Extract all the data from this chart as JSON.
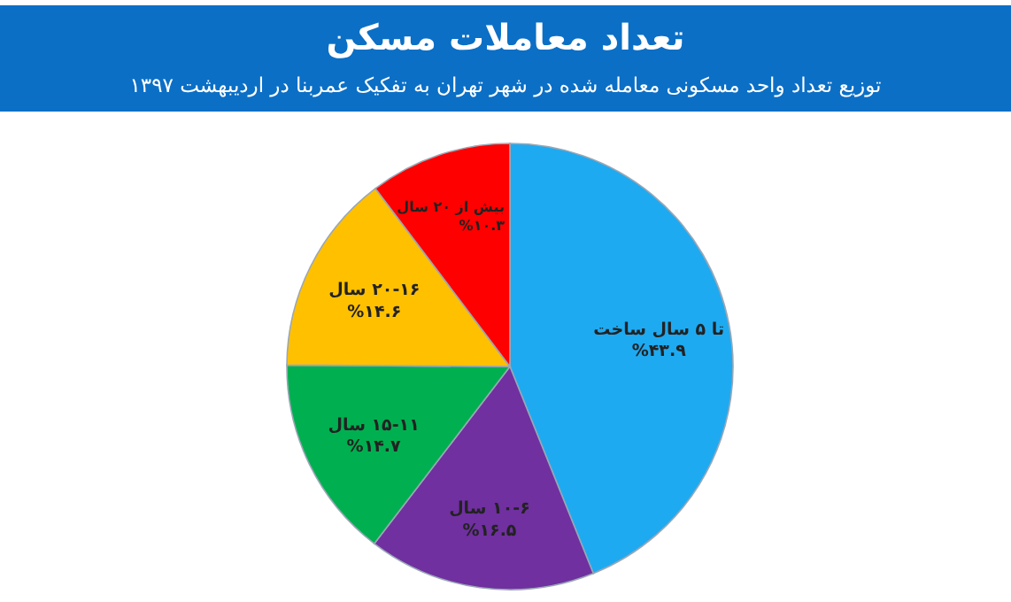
{
  "chart_data": {
    "type": "pie",
    "title": "تعداد معاملات مسکن",
    "subtitle": "توزیع تعداد واحد مسکونی معامله شده در شهر تهران به تفکیک عمربنا در اردیبهشت ۱۳۹۷",
    "categories": [
      "تا ۵ سال ساخت",
      "۱۰-۶ سال",
      "۱۵-۱۱ سال",
      "۲۰-۱۶ سال",
      "بیش از ۲۰ سال"
    ],
    "values": [
      43.9,
      16.5,
      14.7,
      14.6,
      10.3
    ],
    "value_labels": [
      "%۴۳.۹",
      "%۱۶.۵",
      "%۱۴.۷",
      "%۱۴.۶",
      "%۱۰.۳"
    ],
    "colors": [
      "#1eaaf1",
      "#7030a0",
      "#00b050",
      "#ffc000",
      "#ff0000"
    ],
    "legend": false
  }
}
